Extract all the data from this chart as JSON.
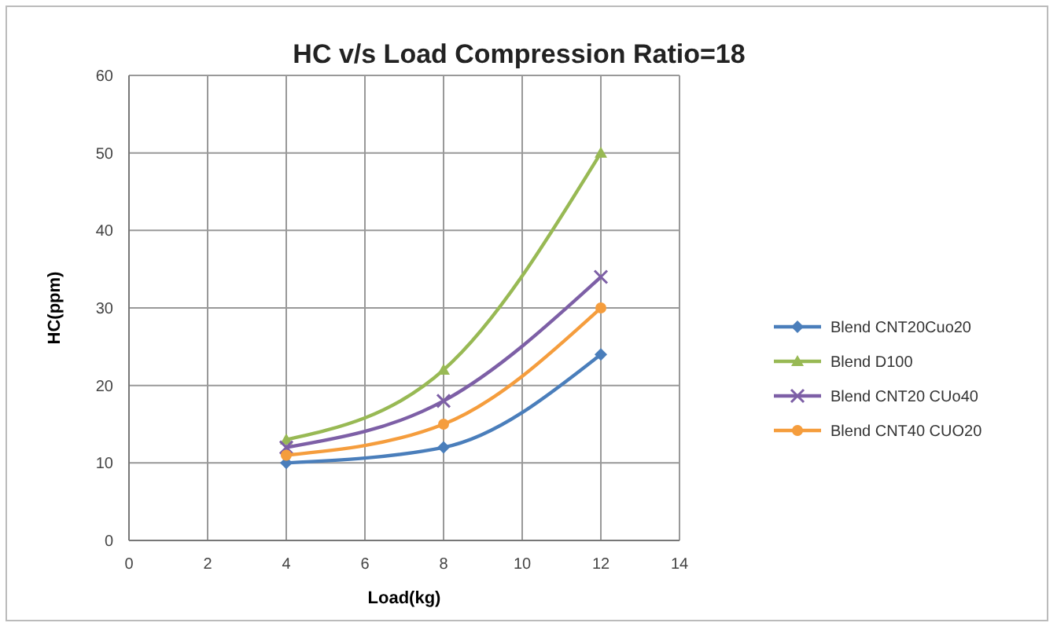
{
  "chart_data": {
    "type": "line",
    "title": "HC v/s Load Compression  Ratio=18",
    "xlabel": "Load(kg)",
    "ylabel": "HC(ppm)",
    "x": [
      4,
      8,
      12
    ],
    "series": [
      {
        "name": "Blend CNT20Cuo20",
        "color": "#4a7ebb",
        "values": [
          10,
          12,
          24
        ],
        "marker": "diamond"
      },
      {
        "name": "Blend D100",
        "color": "#98b954",
        "values": [
          13,
          22,
          50
        ],
        "marker": "triangle"
      },
      {
        "name": "Blend CNT20 CUo40",
        "color": "#7d5fa6",
        "values": [
          12,
          18,
          34
        ],
        "marker": "cross"
      },
      {
        "name": "Blend CNT40 CUO20",
        "color": "#f59d3d",
        "values": [
          11,
          15,
          30
        ],
        "marker": "circle"
      }
    ],
    "xlim": [
      0,
      14
    ],
    "xticks": [
      0,
      2,
      4,
      6,
      8,
      10,
      12,
      14
    ],
    "ylim": [
      0,
      60
    ],
    "yticks": [
      0,
      10,
      20,
      30,
      40,
      50,
      60
    ],
    "grid": true,
    "legend": "right",
    "line_style": "solid"
  }
}
